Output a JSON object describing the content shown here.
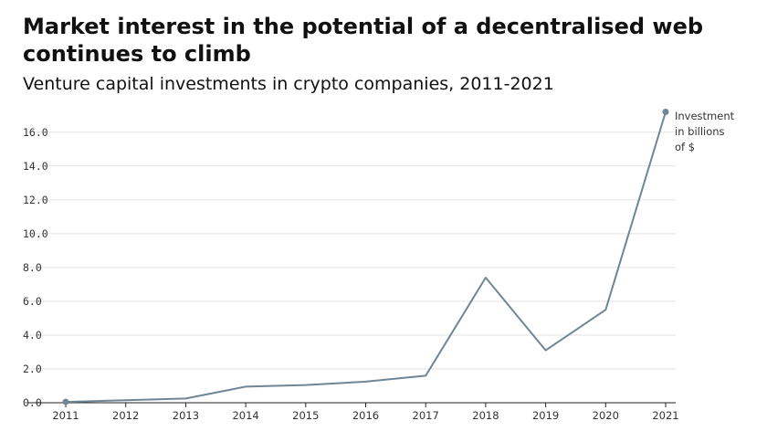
{
  "title": "Market interest in the potential of a decentralised web continues to climb",
  "subtitle": "Venture capital investments in crypto companies, 2011-2021",
  "chart_data": {
    "type": "line",
    "title": "Market interest in the potential of a decentralised web continues to climb",
    "subtitle": "Venture capital investments in crypto companies, 2011-2021",
    "xlabel": "",
    "ylabel": "",
    "x": [
      2011,
      2012,
      2013,
      2014,
      2015,
      2016,
      2017,
      2018,
      2019,
      2020,
      2021
    ],
    "x_tick_labels": [
      "2011",
      "2012",
      "2013",
      "2014",
      "2015",
      "2016",
      "2017",
      "2018",
      "2019",
      "2020",
      "2021"
    ],
    "series": [
      {
        "values": [
          0.05,
          0.15,
          0.25,
          0.95,
          1.05,
          1.25,
          1.6,
          7.4,
          3.1,
          5.5,
          17.2
        ],
        "color": "#6f8696"
      }
    ],
    "ylim": [
      0,
      17.5
    ],
    "y_ticks": [
      0,
      2,
      4,
      6,
      8,
      10,
      12,
      14,
      16
    ],
    "y_tick_labels": [
      "0.0",
      "2.0",
      "4.0",
      "6.0",
      "8.0",
      "10.0",
      "12.0",
      "14.0",
      "16.0"
    ],
    "grid": true,
    "end_annotation": [
      "Investment",
      "in billions",
      "of $"
    ]
  }
}
